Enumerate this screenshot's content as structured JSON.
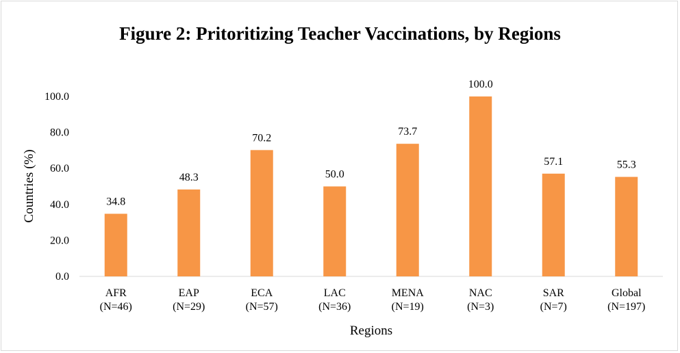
{
  "chart_data": {
    "type": "bar",
    "title": "Figure 2: Pritoritizing Teacher Vaccinations, by Regions",
    "xlabel": "Regions",
    "ylabel": "Countries (%)",
    "ylim": [
      0,
      100
    ],
    "yticks": [
      "0.0",
      "20.0",
      "40.0",
      "60.0",
      "80.0",
      "100.0"
    ],
    "categories": [
      [
        "AFR",
        "(N=46)"
      ],
      [
        "EAP",
        "(N=29)"
      ],
      [
        "ECA",
        "(N=57)"
      ],
      [
        "LAC",
        "(N=36)"
      ],
      [
        "MENA",
        "(N=19)"
      ],
      [
        "NAC",
        "(N=3)"
      ],
      [
        "SAR",
        "(N=7)"
      ],
      [
        "Global",
        "(N=197)"
      ]
    ],
    "values": [
      34.8,
      48.3,
      70.2,
      50.0,
      73.7,
      100.0,
      57.1,
      55.3
    ],
    "data_labels": [
      "34.8",
      "48.3",
      "70.2",
      "50.0",
      "73.7",
      "100.0",
      "57.1",
      "55.3"
    ],
    "bar_color": "#F79646",
    "grid": false,
    "legend": "none"
  }
}
